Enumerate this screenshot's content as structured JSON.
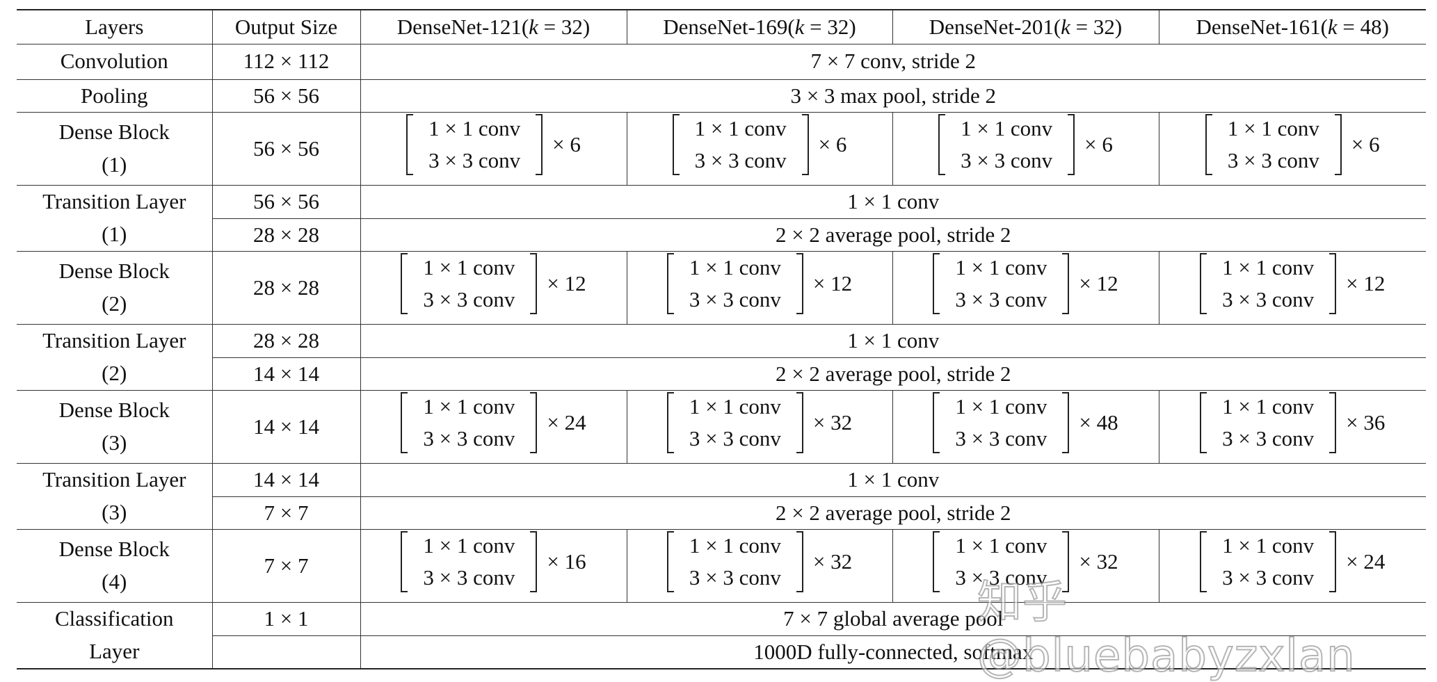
{
  "header": {
    "layers": "Layers",
    "output_size": "Output Size",
    "models": [
      {
        "name": "DenseNet-121",
        "k": "32"
      },
      {
        "name": "DenseNet-169",
        "k": "32"
      },
      {
        "name": "DenseNet-201",
        "k": "32"
      },
      {
        "name": "DenseNet-161",
        "k": "48"
      }
    ]
  },
  "rows": [
    {
      "type": "span",
      "layer": "Convolution",
      "size": "112 × 112",
      "text": "7 × 7 conv, stride 2"
    },
    {
      "type": "span",
      "layer": "Pooling",
      "size": "56 × 56",
      "text": "3 × 3 max pool, stride 2"
    },
    {
      "type": "dense",
      "layer": [
        "Dense Block",
        "(1)"
      ],
      "size": "56 × 56",
      "inner": [
        "1 × 1 conv",
        "3 × 3 conv"
      ],
      "mult": [
        "× 6",
        "× 6",
        "× 6",
        "× 6"
      ]
    },
    {
      "type": "double",
      "layer": [
        "Transition Layer",
        "(1)"
      ],
      "sizes": [
        "56 × 56",
        "28 × 28"
      ],
      "texts": [
        "1 × 1 conv",
        "2 × 2 average pool, stride 2"
      ]
    },
    {
      "type": "dense",
      "layer": [
        "Dense Block",
        "(2)"
      ],
      "size": "28 × 28",
      "inner": [
        "1 × 1 conv",
        "3 × 3 conv"
      ],
      "mult": [
        "× 12",
        "× 12",
        "× 12",
        "× 12"
      ]
    },
    {
      "type": "double",
      "layer": [
        "Transition Layer",
        "(2)"
      ],
      "sizes": [
        "28 × 28",
        "14 × 14"
      ],
      "texts": [
        "1 × 1 conv",
        "2 × 2 average pool, stride 2"
      ]
    },
    {
      "type": "dense",
      "layer": [
        "Dense Block",
        "(3)"
      ],
      "size": "14 × 14",
      "inner": [
        "1 × 1 conv",
        "3 × 3 conv"
      ],
      "mult": [
        "× 24",
        "× 32",
        "× 48",
        "× 36"
      ]
    },
    {
      "type": "double",
      "layer": [
        "Transition Layer",
        "(3)"
      ],
      "sizes": [
        "14 × 14",
        "7 × 7"
      ],
      "texts": [
        "1 × 1 conv",
        "2 × 2 average pool, stride 2"
      ]
    },
    {
      "type": "dense",
      "layer": [
        "Dense Block",
        "(4)"
      ],
      "size": "7 × 7",
      "inner": [
        "1 × 1 conv",
        "3 × 3 conv"
      ],
      "mult": [
        "× 16",
        "× 32",
        "× 32",
        "× 24"
      ]
    },
    {
      "type": "double",
      "layer": [
        "Classification",
        "Layer"
      ],
      "sizes": [
        "1 × 1",
        ""
      ],
      "texts": [
        "7 × 7 global average pool",
        "1000D fully-connected, softmax"
      ]
    }
  ],
  "watermark": "知乎 @bluebabyzxlan"
}
